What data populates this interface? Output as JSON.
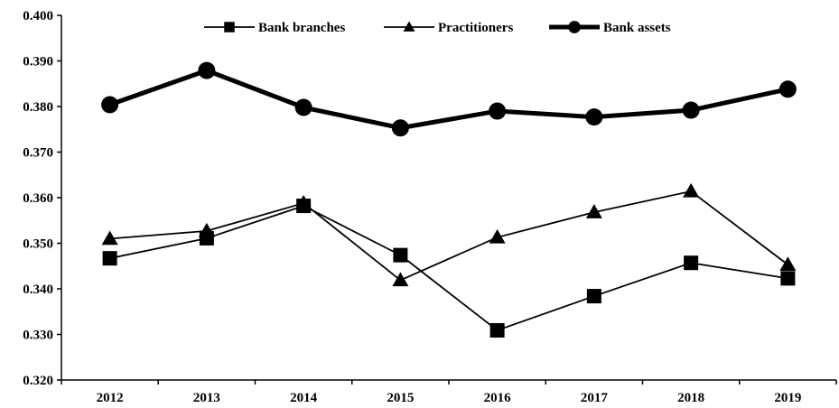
{
  "chart_data": {
    "type": "line",
    "title": "",
    "xlabel": "",
    "ylabel": "",
    "categories": [
      "2012",
      "2013",
      "2014",
      "2015",
      "2016",
      "2017",
      "2018",
      "2019"
    ],
    "ylim": [
      0.32,
      0.4
    ],
    "yticks": [
      "0.320",
      "0.330",
      "0.340",
      "0.350",
      "0.360",
      "0.370",
      "0.380",
      "0.390",
      "0.400"
    ],
    "grid": false,
    "legend_position": "top-center",
    "series": [
      {
        "name": "Bank branches",
        "marker": "square",
        "line": "thin",
        "values": [
          0.3467,
          0.3511,
          0.3582,
          0.3474,
          0.3309,
          0.3384,
          0.3457,
          0.3423
        ]
      },
      {
        "name": "Practitioners",
        "marker": "triangle",
        "line": "thin",
        "values": [
          0.351,
          0.3527,
          0.3588,
          0.3419,
          0.3513,
          0.3568,
          0.3614,
          0.3453
        ]
      },
      {
        "name": "Bank assets",
        "marker": "circle",
        "line": "thick",
        "values": [
          0.3804,
          0.3879,
          0.3798,
          0.3753,
          0.379,
          0.3777,
          0.3792,
          0.3838
        ]
      }
    ],
    "colors": {
      "line": "#000000",
      "background": "#ffffff"
    }
  }
}
